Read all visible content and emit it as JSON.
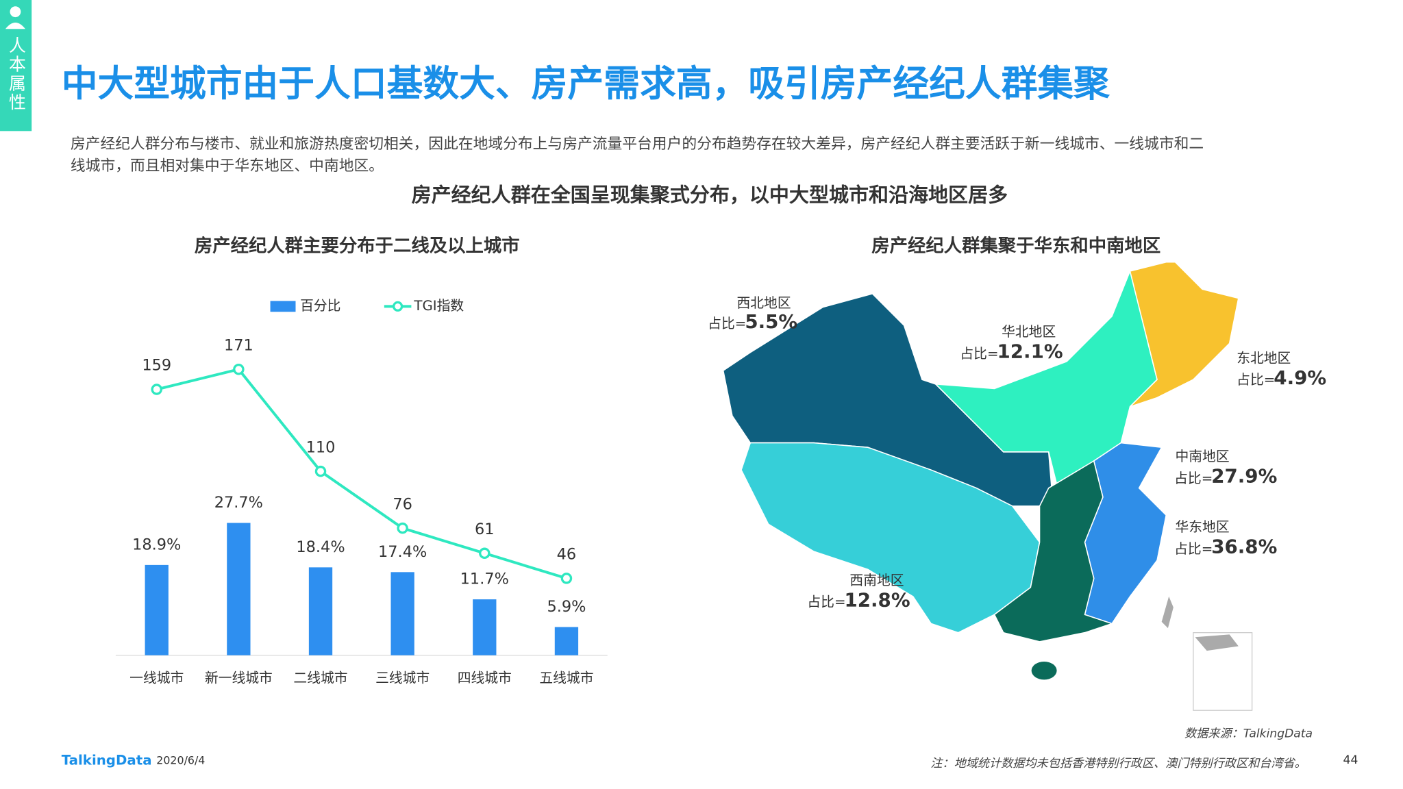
{
  "sidebar": {
    "label": "人本属性"
  },
  "header": {
    "title": "中大型城市由于人口基数大、房产需求高，吸引房产经纪人群集聚"
  },
  "description": {
    "lines": [
      "房产经纪人群分布与楼市、就业和旅游热度密切相关，因此在地域分布上与房产流量平台用户的分布趋势存在较大差异，房产经纪人群主要活跃于新一线城市、一线城市和二",
      "线城市，而且相对集中于华东地区、中南地区。"
    ]
  },
  "subtitle": "房产经纪人群在全国呈现集聚式分布，以中大型城市和沿海地区居多",
  "chart_data": {
    "type": "bar",
    "title": "房产经纪人群主要分布于二线及以上城市",
    "categories": [
      "一线城市",
      "新一线城市",
      "二线城市",
      "三线城市",
      "四线城市",
      "五线城市"
    ],
    "series": [
      {
        "name": "百分比",
        "type": "bar",
        "color": "#2e8ff0",
        "values": [
          18.9,
          27.7,
          18.4,
          17.4,
          11.7,
          5.9
        ],
        "value_labels": [
          "18.9%",
          "27.7%",
          "18.4%",
          "17.4%",
          "11.7%",
          "5.9%"
        ]
      },
      {
        "name": "TGI指数",
        "type": "line",
        "axis": "y2",
        "color": "#2ee8c0",
        "values": [
          159,
          171,
          110,
          76,
          61,
          46
        ]
      }
    ],
    "ylim": [
      0,
      70
    ],
    "y2lim": [
      0,
      200
    ]
  },
  "map": {
    "title": "房产经纪人群集聚于华东和中南地区",
    "regions": [
      {
        "name": "西北地区",
        "prefix": "占比=",
        "share": "5.5%"
      },
      {
        "name": "华北地区",
        "prefix": "占比=",
        "share": "12.1%"
      },
      {
        "name": "东北地区",
        "prefix": "占比=",
        "share": "4.9%"
      },
      {
        "name": "中南地区",
        "prefix": "占比=",
        "share": "27.9%"
      },
      {
        "name": "华东地区",
        "prefix": "占比=",
        "share": "36.8%"
      },
      {
        "name": "西南地区",
        "prefix": "占比=",
        "share": "12.8%"
      }
    ]
  },
  "footer": {
    "logo": "TalkingData",
    "date": "2020/6/4",
    "source": "数据来源：TalkingData",
    "note": "注：地域统计数据均未包括香港特别行政区、澳门特别行政区和台湾省。",
    "page": "44"
  }
}
